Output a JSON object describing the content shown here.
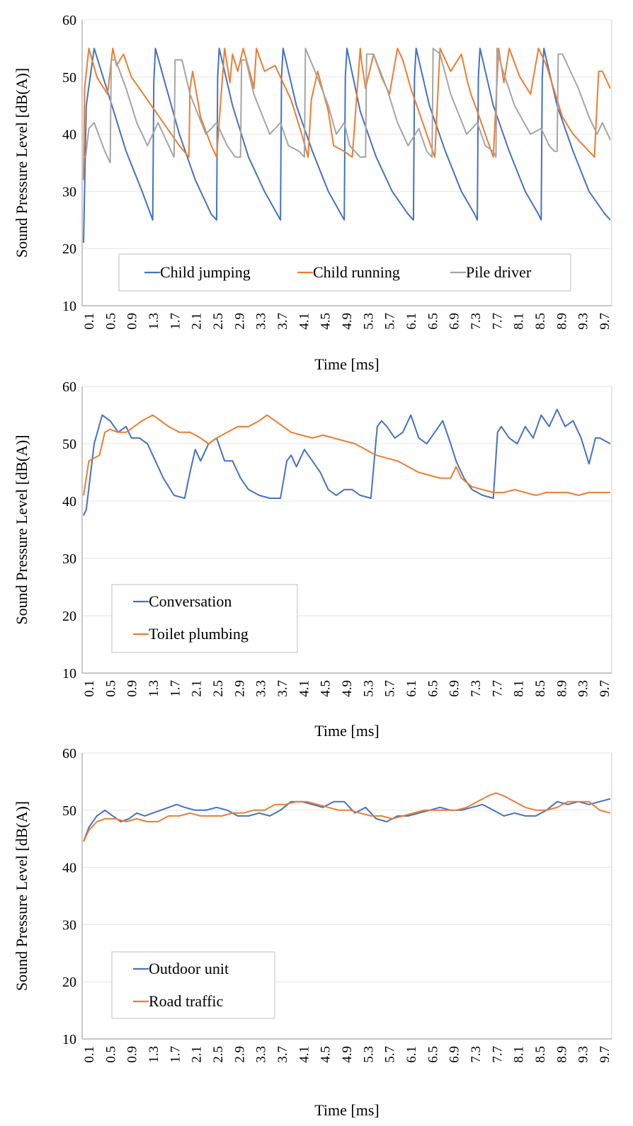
{
  "chart_data": [
    {
      "type": "line",
      "title": "",
      "xlabel": "Time [ms]",
      "ylabel": "Sound Pressure Level [dB(A)]",
      "ylim": [
        10,
        60
      ],
      "yticks": [
        "10",
        "20",
        "30",
        "40",
        "50",
        "60"
      ],
      "xrange": [
        0.1,
        10.0
      ],
      "xticks": [
        "0.1",
        "0.5",
        "0.9",
        "1.3",
        "1.7",
        "2.1",
        "2.5",
        "2.9",
        "3.3",
        "3.7",
        "4.1",
        "4.5",
        "4.9",
        "5.3",
        "5.7",
        "6.1",
        "6.5",
        "6.9",
        "7.3",
        "7.7",
        "8.1",
        "8.5",
        "8.9",
        "9.3",
        "9.7"
      ],
      "grid": true,
      "legend": {
        "placement": "bottom-center",
        "layout": "row"
      },
      "series": [
        {
          "name": "Child jumping",
          "color": "#4472C4",
          "x": [
            0.1,
            0.15,
            0.3,
            0.6,
            0.9,
            1.2,
            1.4,
            1.42,
            1.45,
            1.6,
            1.9,
            2.2,
            2.5,
            2.6,
            2.62,
            2.65,
            2.9,
            3.2,
            3.5,
            3.8,
            3.82,
            3.85,
            4.1,
            4.4,
            4.7,
            5.0,
            5.02,
            5.05,
            5.3,
            5.6,
            5.9,
            6.2,
            6.3,
            6.32,
            6.35,
            6.6,
            6.9,
            7.2,
            7.45,
            7.5,
            7.52,
            7.55,
            7.8,
            8.1,
            8.4,
            8.65,
            8.7,
            8.72,
            8.75,
            9.0,
            9.3,
            9.6,
            9.9,
            10.0
          ],
          "y": [
            21,
            45,
            55,
            46,
            37,
            30,
            25,
            49,
            55,
            50,
            40,
            32,
            26,
            25,
            50,
            55,
            45,
            36,
            30,
            25,
            50,
            55,
            45,
            37,
            30,
            25,
            50,
            55,
            44,
            36,
            30,
            26,
            25,
            50,
            55,
            45,
            37,
            30,
            26,
            25,
            50,
            55,
            45,
            37,
            30,
            26,
            25,
            50,
            55,
            45,
            37,
            30,
            26,
            25
          ]
        },
        {
          "name": "Child running",
          "color": "#ED7D31",
          "x": [
            0.1,
            0.12,
            0.2,
            0.35,
            0.55,
            0.65,
            0.72,
            0.85,
            1.0,
            1.3,
            1.6,
            1.9,
            2.08,
            2.1,
            2.15,
            2.3,
            2.5,
            2.6,
            2.75,
            2.85,
            2.9,
            3.0,
            3.1,
            3.25,
            3.3,
            3.35,
            3.5,
            3.7,
            3.85,
            4.0,
            4.2,
            4.32,
            4.38,
            4.5,
            4.7,
            4.8,
            5.0,
            5.15,
            5.3,
            5.32,
            5.4,
            5.55,
            5.7,
            5.85,
            6.0,
            6.1,
            6.25,
            6.4,
            6.55,
            6.7,
            6.8,
            7.0,
            7.2,
            7.32,
            7.38,
            7.5,
            7.65,
            7.8,
            7.9,
            8.0,
            8.1,
            8.3,
            8.5,
            8.65,
            8.8,
            9.0,
            9.1,
            9.3,
            9.5,
            9.7,
            9.78,
            9.85,
            10.0
          ],
          "y": [
            32,
            48,
            55,
            50,
            47,
            55,
            52,
            54,
            50,
            46,
            42,
            38,
            36,
            48,
            51,
            43,
            38,
            36,
            55,
            49,
            54,
            51,
            55,
            50,
            48,
            55,
            51,
            52,
            49,
            46,
            40,
            36,
            46,
            51,
            44,
            38,
            37,
            36,
            55,
            53,
            48,
            54,
            50,
            47,
            55,
            53,
            48,
            44,
            40,
            36,
            55,
            51,
            54,
            49,
            47,
            44,
            40,
            36,
            55,
            49,
            55,
            50,
            47,
            55,
            52,
            46,
            43,
            40,
            38,
            36,
            51,
            51,
            48
          ]
        },
        {
          "name": "Pile driver",
          "color": "#A5A5A5",
          "x": [
            0.1,
            0.14,
            0.2,
            0.3,
            0.5,
            0.6,
            0.62,
            0.7,
            0.9,
            1.1,
            1.3,
            1.5,
            1.7,
            1.8,
            1.82,
            1.95,
            2.1,
            2.4,
            2.6,
            2.8,
            2.95,
            3.05,
            3.07,
            3.15,
            3.3,
            3.6,
            3.8,
            3.95,
            4.15,
            4.25,
            4.27,
            4.45,
            4.7,
            4.85,
            5.0,
            5.1,
            5.3,
            5.4,
            5.42,
            5.55,
            5.8,
            6.0,
            6.2,
            6.4,
            6.55,
            6.65,
            6.67,
            6.8,
            7.0,
            7.3,
            7.5,
            7.65,
            7.8,
            7.85,
            7.87,
            7.95,
            8.2,
            8.5,
            8.7,
            8.85,
            8.95,
            9.0,
            9.02,
            9.1,
            9.4,
            9.6,
            9.75,
            9.85,
            10.0
          ],
          "y": [
            36,
            36,
            41,
            42,
            37,
            35,
            53,
            53,
            48,
            42,
            38,
            42,
            38,
            36,
            53,
            53,
            47,
            40,
            42,
            38,
            36,
            36,
            53,
            53,
            47,
            40,
            42,
            38,
            37,
            36,
            55,
            51,
            45,
            40,
            42,
            38,
            36,
            36,
            54,
            54,
            48,
            42,
            38,
            41,
            37,
            36,
            55,
            54,
            47,
            40,
            42,
            38,
            37,
            36,
            55,
            52,
            45,
            40,
            41,
            38,
            37,
            37,
            54,
            54,
            48,
            43,
            40,
            42,
            39
          ]
        }
      ]
    },
    {
      "type": "line",
      "title": "",
      "xlabel": "Time [ms]",
      "ylabel": "Sound Pressure Level [dB(A)]",
      "ylim": [
        10,
        60
      ],
      "yticks": [
        "10",
        "20",
        "30",
        "40",
        "50",
        "60"
      ],
      "xrange": [
        0.1,
        10.0
      ],
      "xticks": [
        "0.1",
        "0.5",
        "0.9",
        "1.3",
        "1.7",
        "2.1",
        "2.5",
        "2.9",
        "3.3",
        "3.7",
        "4.1",
        "4.5",
        "4.9",
        "5.3",
        "5.7",
        "6.1",
        "6.5",
        "6.9",
        "7.3",
        "7.7",
        "8.1",
        "8.5",
        "8.9",
        "9.3",
        "9.7"
      ],
      "grid": true,
      "legend": {
        "placement": "bottom-left",
        "layout": "column"
      },
      "series": [
        {
          "name": "Conversation",
          "color": "#4472C4",
          "x": [
            0.1,
            0.15,
            0.3,
            0.45,
            0.6,
            0.75,
            0.9,
            1.0,
            1.15,
            1.3,
            1.45,
            1.6,
            1.8,
            2.0,
            2.1,
            2.2,
            2.3,
            2.45,
            2.6,
            2.75,
            2.9,
            3.05,
            3.2,
            3.4,
            3.6,
            3.8,
            3.92,
            4.0,
            4.1,
            4.25,
            4.4,
            4.55,
            4.7,
            4.85,
            5.0,
            5.15,
            5.3,
            5.5,
            5.62,
            5.7,
            5.8,
            5.95,
            6.1,
            6.25,
            6.4,
            6.55,
            6.7,
            6.85,
            7.0,
            7.1,
            7.25,
            7.4,
            7.6,
            7.8,
            7.88,
            7.95,
            8.1,
            8.25,
            8.4,
            8.55,
            8.7,
            8.85,
            9.0,
            9.15,
            9.3,
            9.45,
            9.6,
            9.72,
            9.8,
            10.0
          ],
          "y": [
            37.5,
            38.5,
            50,
            55,
            54,
            52,
            53,
            51,
            51,
            50,
            47,
            44,
            41,
            40.5,
            45,
            49,
            47,
            50,
            51,
            47,
            47,
            44,
            42,
            41,
            40.5,
            40.5,
            47,
            48,
            46,
            49,
            47,
            45,
            42,
            41,
            42,
            42,
            41,
            40.5,
            53,
            54,
            53,
            51,
            52,
            55,
            51,
            50,
            52,
            54,
            50,
            47,
            44,
            42,
            41,
            40.5,
            52,
            53,
            51,
            50,
            53,
            51,
            55,
            53,
            56,
            53,
            54,
            51,
            46.5,
            51,
            51,
            50
          ]
        },
        {
          "name": "Toilet plumbing",
          "color": "#ED7D31",
          "x": [
            0.1,
            0.2,
            0.3,
            0.4,
            0.5,
            0.6,
            0.75,
            0.9,
            1.05,
            1.2,
            1.4,
            1.55,
            1.7,
            1.9,
            2.1,
            2.3,
            2.45,
            2.6,
            2.8,
            3.0,
            3.2,
            3.4,
            3.55,
            3.7,
            3.85,
            4.0,
            4.2,
            4.4,
            4.6,
            4.8,
            5.0,
            5.2,
            5.4,
            5.6,
            5.8,
            6.0,
            6.2,
            6.4,
            6.6,
            6.8,
            7.0,
            7.1,
            7.2,
            7.4,
            7.6,
            7.8,
            8.0,
            8.2,
            8.4,
            8.6,
            8.8,
            9.0,
            9.2,
            9.4,
            9.6,
            9.8,
            10.0
          ],
          "y": [
            41,
            47,
            47.5,
            48,
            52,
            52.5,
            52,
            52,
            53,
            54,
            55,
            54,
            53,
            52,
            52,
            51,
            50,
            51,
            52,
            53,
            53,
            54,
            55,
            54,
            53,
            52,
            51.5,
            51,
            51.5,
            51,
            50.5,
            50,
            49,
            48,
            47.5,
            47,
            46,
            45,
            44.5,
            44,
            44,
            46,
            44,
            42.5,
            42,
            41.5,
            41.5,
            42,
            41.5,
            41,
            41.5,
            41.5,
            41.5,
            41,
            41.5,
            41.5,
            41.5
          ]
        }
      ]
    },
    {
      "type": "line",
      "title": "",
      "xlabel": "Time [ms]",
      "ylabel": "Sound Pressure Level [dB(A)]",
      "ylim": [
        10,
        60
      ],
      "yticks": [
        "10",
        "20",
        "30",
        "40",
        "50",
        "60"
      ],
      "xrange": [
        0.1,
        10.0
      ],
      "xticks": [
        "0.1",
        "0.5",
        "0.9",
        "1.3",
        "1.7",
        "2.1",
        "2.5",
        "2.9",
        "3.3",
        "3.7",
        "4.1",
        "4.5",
        "4.9",
        "5.3",
        "5.7",
        "6.1",
        "6.5",
        "6.9",
        "7.3",
        "7.7",
        "8.1",
        "8.5",
        "8.9",
        "9.3",
        "9.7"
      ],
      "grid": true,
      "legend": {
        "placement": "bottom-left",
        "layout": "column"
      },
      "series": [
        {
          "name": "Outdoor unit",
          "color": "#4472C4",
          "x": [
            0.1,
            0.2,
            0.35,
            0.5,
            0.65,
            0.8,
            0.95,
            1.1,
            1.25,
            1.4,
            1.55,
            1.7,
            1.85,
            2.0,
            2.2,
            2.4,
            2.6,
            2.8,
            3.0,
            3.2,
            3.4,
            3.6,
            3.8,
            4.0,
            4.2,
            4.4,
            4.6,
            4.8,
            5.0,
            5.2,
            5.4,
            5.6,
            5.8,
            6.0,
            6.2,
            6.4,
            6.6,
            6.8,
            7.0,
            7.2,
            7.4,
            7.6,
            7.8,
            8.0,
            8.2,
            8.4,
            8.6,
            8.8,
            9.0,
            9.2,
            9.4,
            9.6,
            9.8,
            10.0
          ],
          "y": [
            44.5,
            47,
            49,
            50,
            49,
            48,
            48.5,
            49.5,
            49,
            49.5,
            50,
            50.5,
            51,
            50.5,
            50,
            50,
            50.5,
            50,
            49,
            49,
            49.5,
            49,
            50,
            51.5,
            51.5,
            51,
            50.5,
            51.5,
            51.5,
            49.5,
            50.5,
            48.5,
            48,
            49,
            49,
            49.5,
            50,
            50.5,
            50,
            50,
            50.5,
            51,
            50,
            49,
            49.5,
            49,
            49,
            50,
            51.5,
            51,
            51.5,
            51,
            51.5,
            52
          ]
        },
        {
          "name": "Road traffic",
          "color": "#ED7D31",
          "x": [
            0.1,
            0.2,
            0.35,
            0.5,
            0.7,
            0.9,
            1.1,
            1.3,
            1.5,
            1.7,
            1.9,
            2.1,
            2.3,
            2.5,
            2.7,
            2.9,
            3.1,
            3.3,
            3.5,
            3.7,
            3.9,
            4.1,
            4.3,
            4.5,
            4.7,
            4.9,
            5.1,
            5.3,
            5.5,
            5.7,
            5.9,
            6.1,
            6.3,
            6.5,
            6.7,
            6.9,
            7.1,
            7.3,
            7.5,
            7.7,
            7.85,
            8.0,
            8.2,
            8.4,
            8.6,
            8.8,
            9.0,
            9.2,
            9.4,
            9.6,
            9.8,
            10.0
          ],
          "y": [
            44.5,
            46.5,
            48,
            48.5,
            48.5,
            48,
            48.5,
            48,
            48,
            49,
            49,
            49.5,
            49,
            49,
            49,
            49.5,
            49.5,
            50,
            50,
            51,
            51,
            51.5,
            51.5,
            51,
            50.5,
            50,
            50,
            49.5,
            49,
            49,
            48.5,
            49,
            49.5,
            50,
            50,
            50,
            50,
            50.5,
            51.5,
            52.5,
            53,
            52.5,
            51.5,
            50.5,
            50,
            50,
            50.5,
            51.5,
            51.5,
            51.5,
            50,
            49.5
          ]
        }
      ]
    }
  ]
}
